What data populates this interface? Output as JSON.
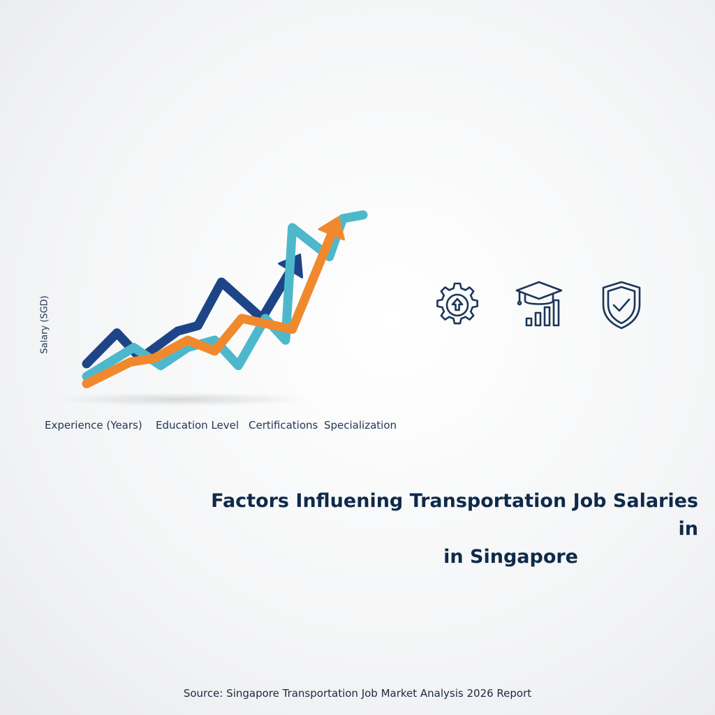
{
  "chart_data": {
    "type": "line",
    "title": "Factors Influening Transportation Job Salaries in",
    "title_line2": "in Singapore",
    "ylabel": "Salary (SGD)",
    "categories": [
      "Experience (Years)",
      "Education Level",
      "Certifications",
      "Specialization"
    ],
    "ylim": [
      0,
      100
    ],
    "grid": false,
    "legend": "none",
    "series": [
      {
        "color": "#1e4488",
        "x": [
          0,
          0.9,
          1.6,
          2.7,
          3.3,
          4.0,
          5.2,
          6.1
        ],
        "values": [
          15,
          32,
          18,
          33,
          36,
          60,
          40,
          68
        ]
      },
      {
        "color": "#4db8cc",
        "x": [
          0,
          1.4,
          2.2,
          3.0,
          3.8,
          4.5,
          5.3,
          5.9,
          6.1,
          7.2,
          7.6,
          8.2
        ],
        "values": [
          8,
          24,
          14,
          24,
          28,
          14,
          40,
          28,
          90,
          74,
          95,
          97
        ]
      },
      {
        "color": "#f0892e",
        "x": [
          0,
          1.3,
          2.0,
          3.0,
          3.8,
          4.6,
          6.1,
          6.9,
          7.3
        ],
        "values": [
          4,
          16,
          18,
          28,
          22,
          40,
          34,
          70,
          88
        ]
      }
    ]
  },
  "icons": [
    "gear-upload-icon",
    "graduation-cap-bar-chart-icon",
    "shield-check-icon"
  ],
  "source": "Source: Singapore Transportation Job Market Analysis 2026 Report"
}
